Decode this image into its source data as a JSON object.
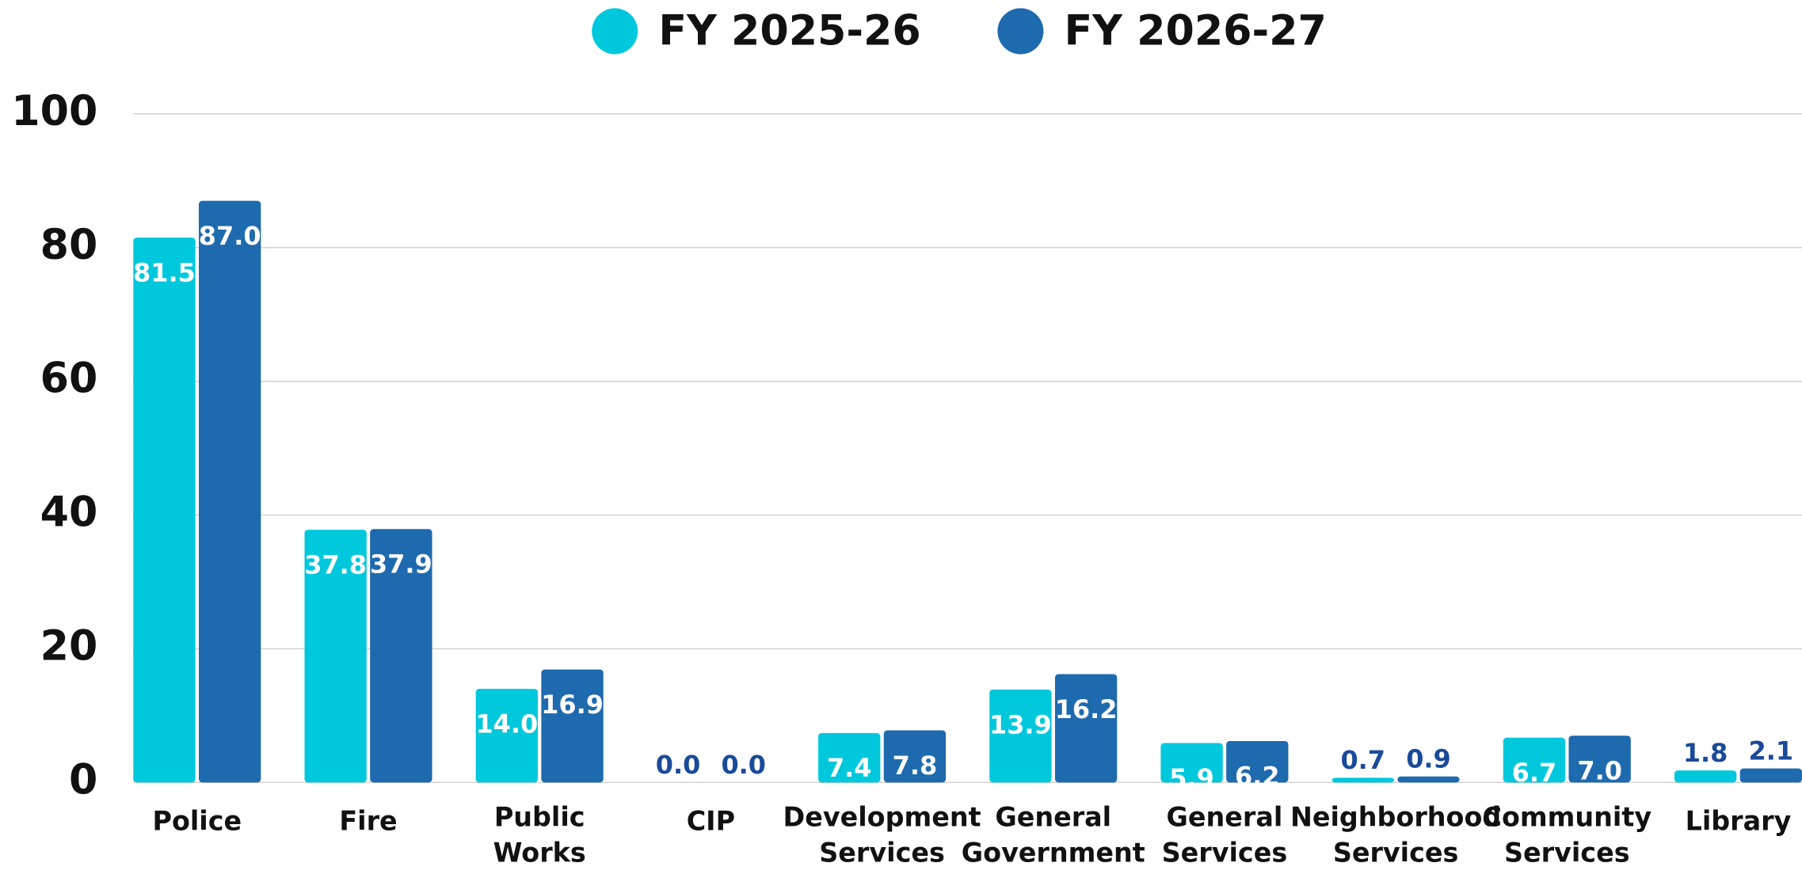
{
  "chart_data": {
    "type": "bar",
    "categories": [
      "Police",
      "Fire",
      "Public Works",
      "CIP",
      "Development Services",
      "General Government",
      "General Services",
      "Neighborhood Services",
      "Community Services",
      "Library"
    ],
    "series": [
      {
        "name": "FY 2025-26",
        "color": "#00c8dc",
        "values": [
          81.5,
          37.8,
          14.0,
          0.0,
          7.4,
          13.9,
          5.9,
          0.7,
          6.7,
          1.8
        ],
        "value_labels": [
          "81.5",
          "37.8",
          "14.0",
          "0.0",
          "7.4",
          "13.9",
          "5.9",
          "0.7",
          "6.7",
          "1.8"
        ]
      },
      {
        "name": "FY 2026-27",
        "color": "#1e6aae",
        "values": [
          87.0,
          37.9,
          16.9,
          0.0,
          7.8,
          16.2,
          6.2,
          0.9,
          7.0,
          2.1
        ],
        "value_labels": [
          "87.0",
          "37.9",
          "16.9",
          "0.0",
          "7.8",
          "16.2",
          "6.2",
          "0.9",
          "7.0",
          "2.1"
        ]
      }
    ],
    "ylim": [
      0,
      100
    ],
    "yticks": [
      0,
      20,
      40,
      60,
      80,
      100
    ],
    "grid": true,
    "legend": "top"
  }
}
